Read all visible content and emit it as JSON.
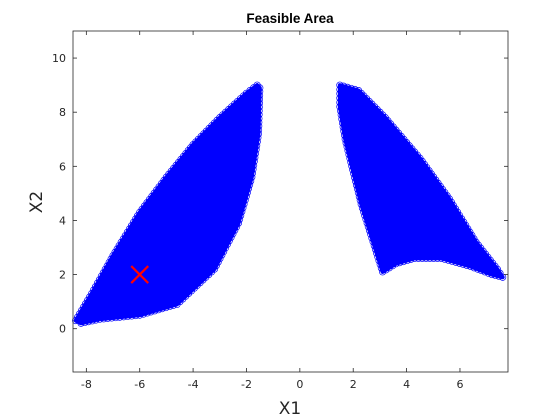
{
  "chart_data": {
    "type": "scatter",
    "title": "Feasible Area",
    "xlabel": "X1",
    "ylabel": "X2",
    "xlim": [
      -8.5,
      7.8
    ],
    "ylim": [
      -1.6,
      11
    ],
    "xticks": [
      -8,
      -6,
      -4,
      -2,
      0,
      2,
      4,
      6
    ],
    "xtick_labels": [
      "-8",
      "-6",
      "-4",
      "-2",
      "0",
      "2",
      "4",
      "6"
    ],
    "yticks": [
      0,
      2,
      4,
      6,
      8,
      10
    ],
    "ytick_labels": [
      "0",
      "2",
      "4",
      "6",
      "8",
      "10"
    ],
    "grid": false,
    "legend": "none",
    "colors": {
      "region": "#0000ff",
      "marker": "#ff0000"
    },
    "regions": [
      {
        "marker": "circle",
        "boundary": [
          [
            -8.4,
            0.3
          ],
          [
            -7.8,
            1.3
          ],
          [
            -7.0,
            2.7
          ],
          [
            -6.0,
            4.3
          ],
          [
            -5.0,
            5.6
          ],
          [
            -4.0,
            6.8
          ],
          [
            -3.0,
            7.8
          ],
          [
            -2.0,
            8.7
          ],
          [
            -1.6,
            9.0
          ],
          [
            -1.5,
            8.9
          ],
          [
            -1.55,
            7.2
          ],
          [
            -1.8,
            5.6
          ],
          [
            -2.3,
            3.9
          ],
          [
            -3.2,
            2.2
          ],
          [
            -4.6,
            0.9
          ],
          [
            -6.0,
            0.5
          ],
          [
            -7.5,
            0.35
          ],
          [
            -8.2,
            0.2
          ]
        ]
      },
      {
        "marker": "circle",
        "boundary": [
          [
            1.5,
            9.0
          ],
          [
            2.2,
            8.8
          ],
          [
            3.2,
            7.8
          ],
          [
            4.5,
            6.3
          ],
          [
            5.6,
            4.8
          ],
          [
            6.6,
            3.2
          ],
          [
            7.4,
            2.2
          ],
          [
            7.6,
            1.9
          ],
          [
            7.2,
            2.0
          ],
          [
            6.4,
            2.3
          ],
          [
            5.3,
            2.6
          ],
          [
            4.3,
            2.6
          ],
          [
            3.6,
            2.4
          ],
          [
            3.1,
            2.1
          ],
          [
            2.3,
            4.6
          ],
          [
            1.7,
            7.0
          ],
          [
            1.5,
            8.2
          ]
        ]
      }
    ],
    "points": [
      {
        "x": -6.0,
        "y": 2.0,
        "marker": "x"
      }
    ]
  }
}
